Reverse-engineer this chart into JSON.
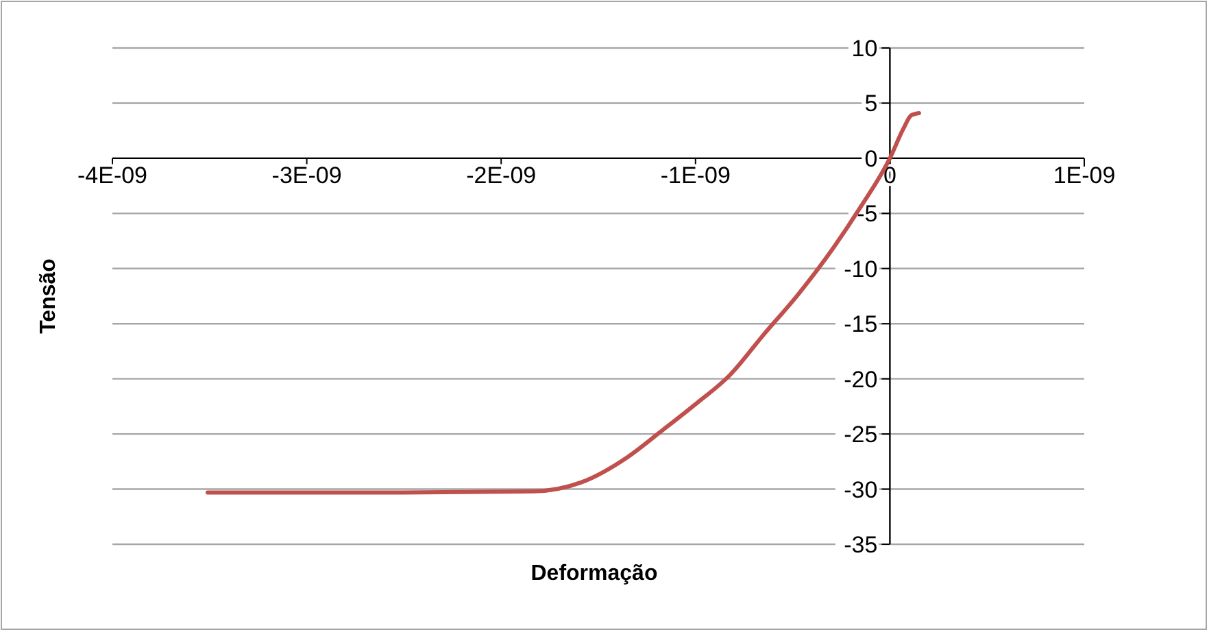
{
  "chart_data": {
    "type": "line",
    "xlabel": "Deformação",
    "ylabel": "Tensão",
    "x": [
      -3.51e-09,
      -2.5e-09,
      -1.83e-09,
      -1.59e-09,
      -1.35e-09,
      -1.18e-09,
      -1e-09,
      -8.2e-10,
      -6.5e-10,
      -4.7e-10,
      -2.9e-10,
      -1.5e-10,
      0,
      7e-11,
      1.1e-10,
      1.5e-10
    ],
    "series": [
      {
        "color": "#c0504d",
        "values": [
          -30.3,
          -30.3,
          -30.2,
          -29.4,
          -27.1,
          -24.8,
          -22.3,
          -19.6,
          -16.0,
          -12.3,
          -8.1,
          -4.4,
          0,
          2.7,
          3.9,
          4.1
        ]
      }
    ],
    "xlim": [
      -4e-09,
      1e-09
    ],
    "xticks": [
      {
        "value": -4e-09,
        "label": "-4E-09"
      },
      {
        "value": -3e-09,
        "label": "-3E-09"
      },
      {
        "value": -2e-09,
        "label": "-2E-09"
      },
      {
        "value": -1e-09,
        "label": "-1E-09"
      },
      0,
      {
        "value": 1e-09,
        "label": "1E-09"
      }
    ],
    "ylim": [
      -35,
      10
    ],
    "yticks": [
      -35,
      -30,
      -25,
      -20,
      -15,
      -10,
      -5,
      0,
      5,
      10
    ],
    "grid": "y",
    "marker": "none",
    "line_style": "solid"
  }
}
